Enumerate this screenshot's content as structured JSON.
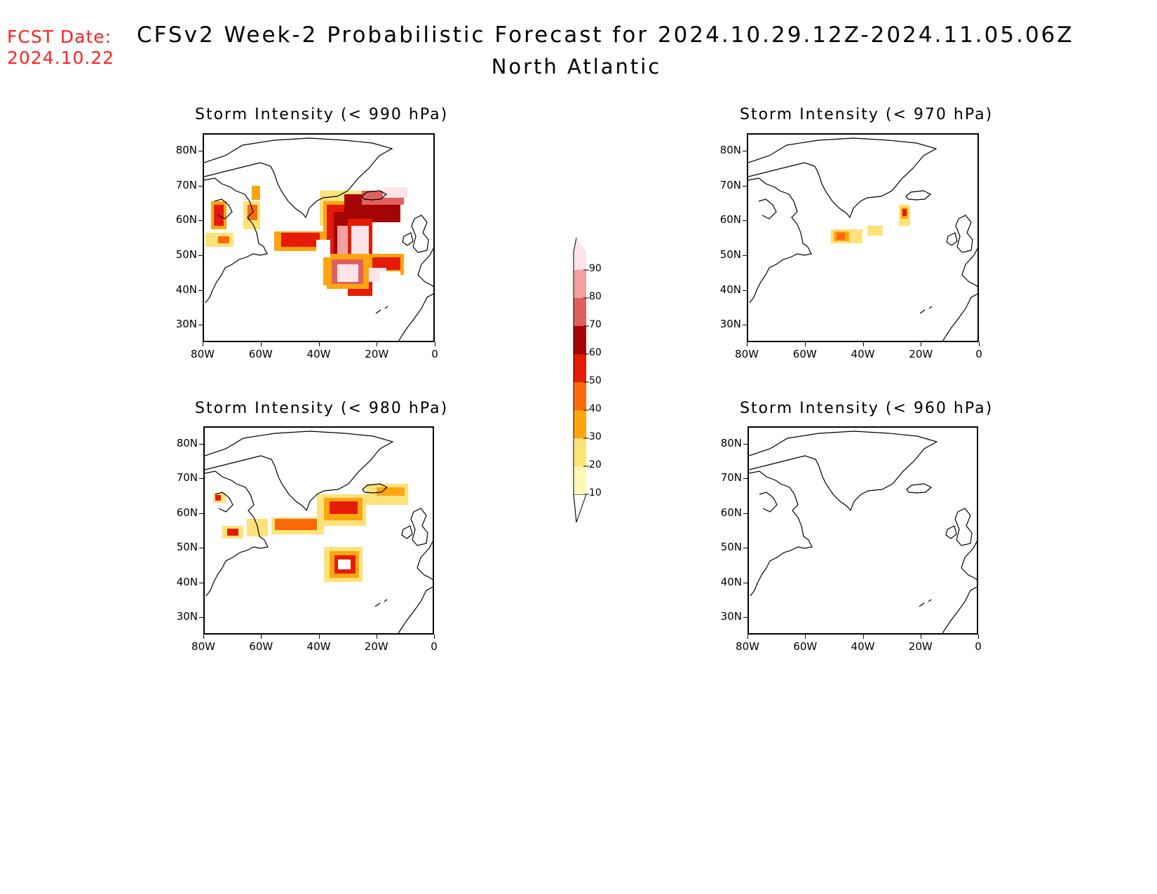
{
  "header": {
    "fcst_label": "FCST Date:",
    "fcst_date": "2024.10.22",
    "title": "CFSv2 Week-2 Probabilistic Forecast for 2024.10.29.12Z-2024.11.05.06Z",
    "region": "North Atlantic"
  },
  "axes": {
    "lat_labels": [
      "80N",
      "70N",
      "60N",
      "50N",
      "40N",
      "30N"
    ],
    "lon_labels": [
      "80W",
      "60W",
      "40W",
      "20W",
      "0"
    ]
  },
  "panels": [
    {
      "id": "p990",
      "title": "Storm Intensity (< 990 hPa)"
    },
    {
      "id": "p970",
      "title": "Storm Intensity (< 970 hPa)"
    },
    {
      "id": "p980",
      "title": "Storm Intensity (< 980 hPa)"
    },
    {
      "id": "p960",
      "title": "Storm Intensity (< 960 hPa)"
    }
  ],
  "colorbar": {
    "levels": [
      "10",
      "20",
      "30",
      "40",
      "50",
      "60",
      "70",
      "80",
      "90"
    ],
    "colors": [
      "#fff7b3",
      "#fde27a",
      "#fca50e",
      "#fb6a0a",
      "#e51b08",
      "#a50605",
      "#e06060",
      "#f2a0a0",
      "#fce4e8"
    ]
  }
}
